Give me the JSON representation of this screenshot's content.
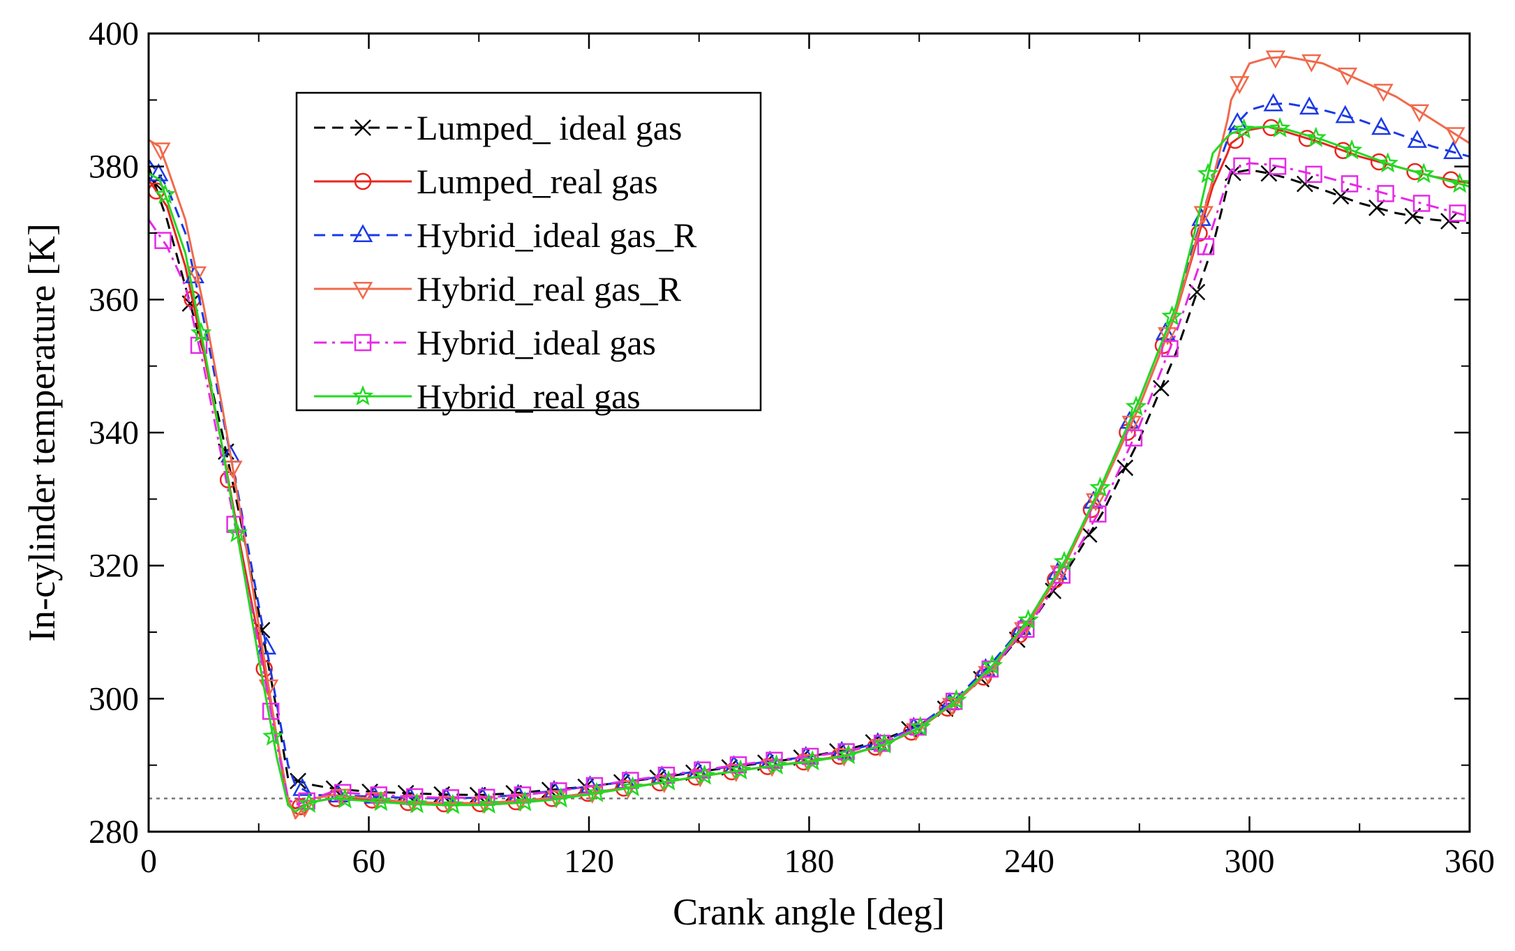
{
  "chart_data": {
    "type": "line",
    "title": "",
    "xlabel": "Crank angle [deg]",
    "ylabel": "In-cylinder temperature [K]",
    "xlim": [
      0,
      360
    ],
    "ylim": [
      280,
      400
    ],
    "xticks": [
      0,
      60,
      120,
      180,
      240,
      300,
      360
    ],
    "yticks": [
      280,
      300,
      320,
      340,
      360,
      380,
      400
    ],
    "grid": false,
    "legend_position": "top-left",
    "reference_line": {
      "y": 285,
      "style": "dotted",
      "color": "#777777"
    },
    "series": [
      {
        "name": "Lumped_ ideal gas",
        "color": "#000000",
        "dash": "dash",
        "marker": "x",
        "x": [
          0,
          5,
          10,
          15,
          20,
          25,
          30,
          35,
          38,
          45,
          50,
          60,
          70,
          80,
          90,
          100,
          110,
          120,
          130,
          140,
          150,
          160,
          170,
          180,
          190,
          200,
          210,
          220,
          230,
          240,
          250,
          260,
          270,
          280,
          290,
          294,
          295,
          300,
          305,
          310,
          320,
          330,
          340,
          350,
          360
        ],
        "y": [
          380,
          372,
          362,
          352,
          340,
          327,
          313,
          298,
          288,
          287,
          286.5,
          286,
          285.8,
          285.6,
          285.5,
          285.8,
          286.3,
          286.8,
          287.5,
          288.2,
          289,
          289.8,
          290.5,
          291.3,
          292.3,
          293.8,
          296,
          299.5,
          304.5,
          311,
          319,
          328,
          339,
          352,
          368,
          377,
          379,
          379.5,
          379,
          378.3,
          376.5,
          374.5,
          373,
          372,
          371.5
        ]
      },
      {
        "name": "Lumped_real gas",
        "color": "#e8261e",
        "dash": "solid",
        "marker": "circle",
        "x": [
          0,
          5,
          10,
          15,
          20,
          25,
          30,
          35,
          38,
          40,
          45,
          50,
          60,
          70,
          80,
          90,
          100,
          110,
          120,
          130,
          140,
          150,
          160,
          170,
          180,
          190,
          200,
          210,
          220,
          230,
          240,
          250,
          260,
          270,
          280,
          290,
          294,
          295,
          300,
          305,
          310,
          320,
          330,
          340,
          350,
          360
        ],
        "y": [
          378,
          374,
          365,
          352,
          338,
          323,
          309,
          294,
          284,
          283.5,
          284.5,
          285,
          284.8,
          284.4,
          284.2,
          284.2,
          284.5,
          285,
          285.8,
          286.6,
          287.4,
          288.3,
          289.1,
          289.9,
          290.6,
          291.5,
          293,
          295.5,
          299.5,
          304.5,
          311.5,
          320.5,
          332,
          344,
          358,
          377,
          382,
          383.5,
          385.5,
          386,
          385.2,
          383.5,
          381.5,
          380,
          378.5,
          377.5
        ]
      },
      {
        "name": "Hybrid_ideal gas_R",
        "color": "#1b39e6",
        "dash": "dash",
        "marker": "triangle-up",
        "x": [
          0,
          5,
          10,
          15,
          20,
          25,
          30,
          35,
          38,
          40,
          45,
          50,
          60,
          70,
          80,
          90,
          100,
          110,
          120,
          130,
          140,
          150,
          160,
          170,
          180,
          190,
          200,
          210,
          220,
          230,
          240,
          250,
          260,
          270,
          280,
          290,
          294,
          295,
          300,
          305,
          310,
          320,
          330,
          340,
          350,
          360
        ],
        "y": [
          381,
          377,
          370,
          357,
          343,
          329,
          314,
          299,
          290,
          287,
          285.5,
          285.5,
          285.3,
          285.1,
          285,
          285.1,
          285.5,
          286.1,
          286.8,
          287.5,
          288.3,
          289.1,
          289.9,
          290.6,
          291.3,
          292.1,
          293.5,
          296,
          300,
          305.5,
          312,
          321,
          332.5,
          345,
          359,
          378,
          384,
          385.5,
          388.5,
          389.3,
          389.5,
          388.5,
          387,
          385,
          383,
          381.5
        ]
      },
      {
        "name": "Hybrid_real gas_R",
        "color": "#f06a4c",
        "dash": "solid",
        "marker": "triangle-down",
        "x": [
          0,
          3,
          5,
          10,
          15,
          20,
          25,
          30,
          35,
          38,
          40,
          42,
          45,
          50,
          60,
          70,
          80,
          90,
          100,
          110,
          120,
          130,
          140,
          150,
          160,
          170,
          180,
          190,
          200,
          210,
          220,
          230,
          240,
          250,
          260,
          270,
          280,
          290,
          294,
          295,
          300,
          305,
          310,
          320,
          330,
          340,
          350,
          360
        ],
        "y": [
          384,
          383,
          380,
          372,
          359,
          344,
          328,
          311,
          294,
          285,
          282,
          283.5,
          285,
          285.5,
          285,
          284.5,
          284.3,
          284.3,
          284.6,
          285.1,
          285.8,
          286.6,
          287.4,
          288.3,
          289.1,
          289.9,
          290.6,
          291.5,
          293,
          295.5,
          299.5,
          304.5,
          311.5,
          320.5,
          332,
          344,
          358,
          378,
          387,
          390,
          395.5,
          396.3,
          396.5,
          395.5,
          393,
          390.5,
          387,
          383.5
        ]
      },
      {
        "name": "Hybrid_ideal gas",
        "color": "#e62ae6",
        "dash": "dashdot",
        "marker": "square",
        "x": [
          0,
          5,
          10,
          15,
          20,
          25,
          30,
          35,
          38,
          40,
          45,
          50,
          60,
          70,
          80,
          90,
          100,
          110,
          120,
          130,
          140,
          150,
          160,
          170,
          180,
          190,
          200,
          210,
          220,
          230,
          240,
          250,
          260,
          270,
          280,
          290,
          294,
          295,
          300,
          305,
          310,
          320,
          330,
          340,
          350,
          360
        ],
        "y": [
          372,
          368,
          362,
          350,
          336,
          322,
          308,
          293,
          285,
          284,
          285,
          286,
          285.6,
          285.3,
          285.1,
          285.1,
          285.4,
          286,
          286.8,
          287.6,
          288.4,
          289.2,
          290,
          290.7,
          291.3,
          292,
          293.3,
          295.8,
          299.8,
          304.8,
          311,
          319.5,
          329,
          341,
          355,
          371,
          378,
          379.5,
          380.5,
          380.3,
          379.8,
          378.5,
          377,
          375.5,
          374,
          372.5
        ]
      },
      {
        "name": "Hybrid_real gas",
        "color": "#22d922",
        "dash": "solid",
        "marker": "star",
        "x": [
          0,
          3,
          5,
          10,
          15,
          20,
          25,
          30,
          35,
          38,
          40,
          42,
          45,
          50,
          60,
          70,
          80,
          90,
          100,
          110,
          120,
          130,
          140,
          150,
          160,
          170,
          180,
          190,
          200,
          210,
          220,
          230,
          240,
          250,
          260,
          270,
          280,
          285,
          290,
          294,
          295,
          300,
          305,
          310,
          320,
          330,
          340,
          350,
          360
        ],
        "y": [
          379,
          378,
          375,
          367,
          353,
          338,
          322,
          306,
          291,
          284,
          283,
          283.8,
          284.5,
          285,
          284.6,
          284.2,
          284,
          284,
          284.3,
          284.8,
          285.6,
          286.5,
          287.4,
          288.3,
          289.1,
          289.9,
          290.5,
          291.4,
          293,
          295.6,
          299.7,
          305,
          312,
          321,
          332.5,
          345,
          359,
          370,
          382,
          384.5,
          385,
          385.8,
          386,
          385.6,
          384,
          382,
          380,
          378.5,
          377
        ]
      }
    ]
  }
}
